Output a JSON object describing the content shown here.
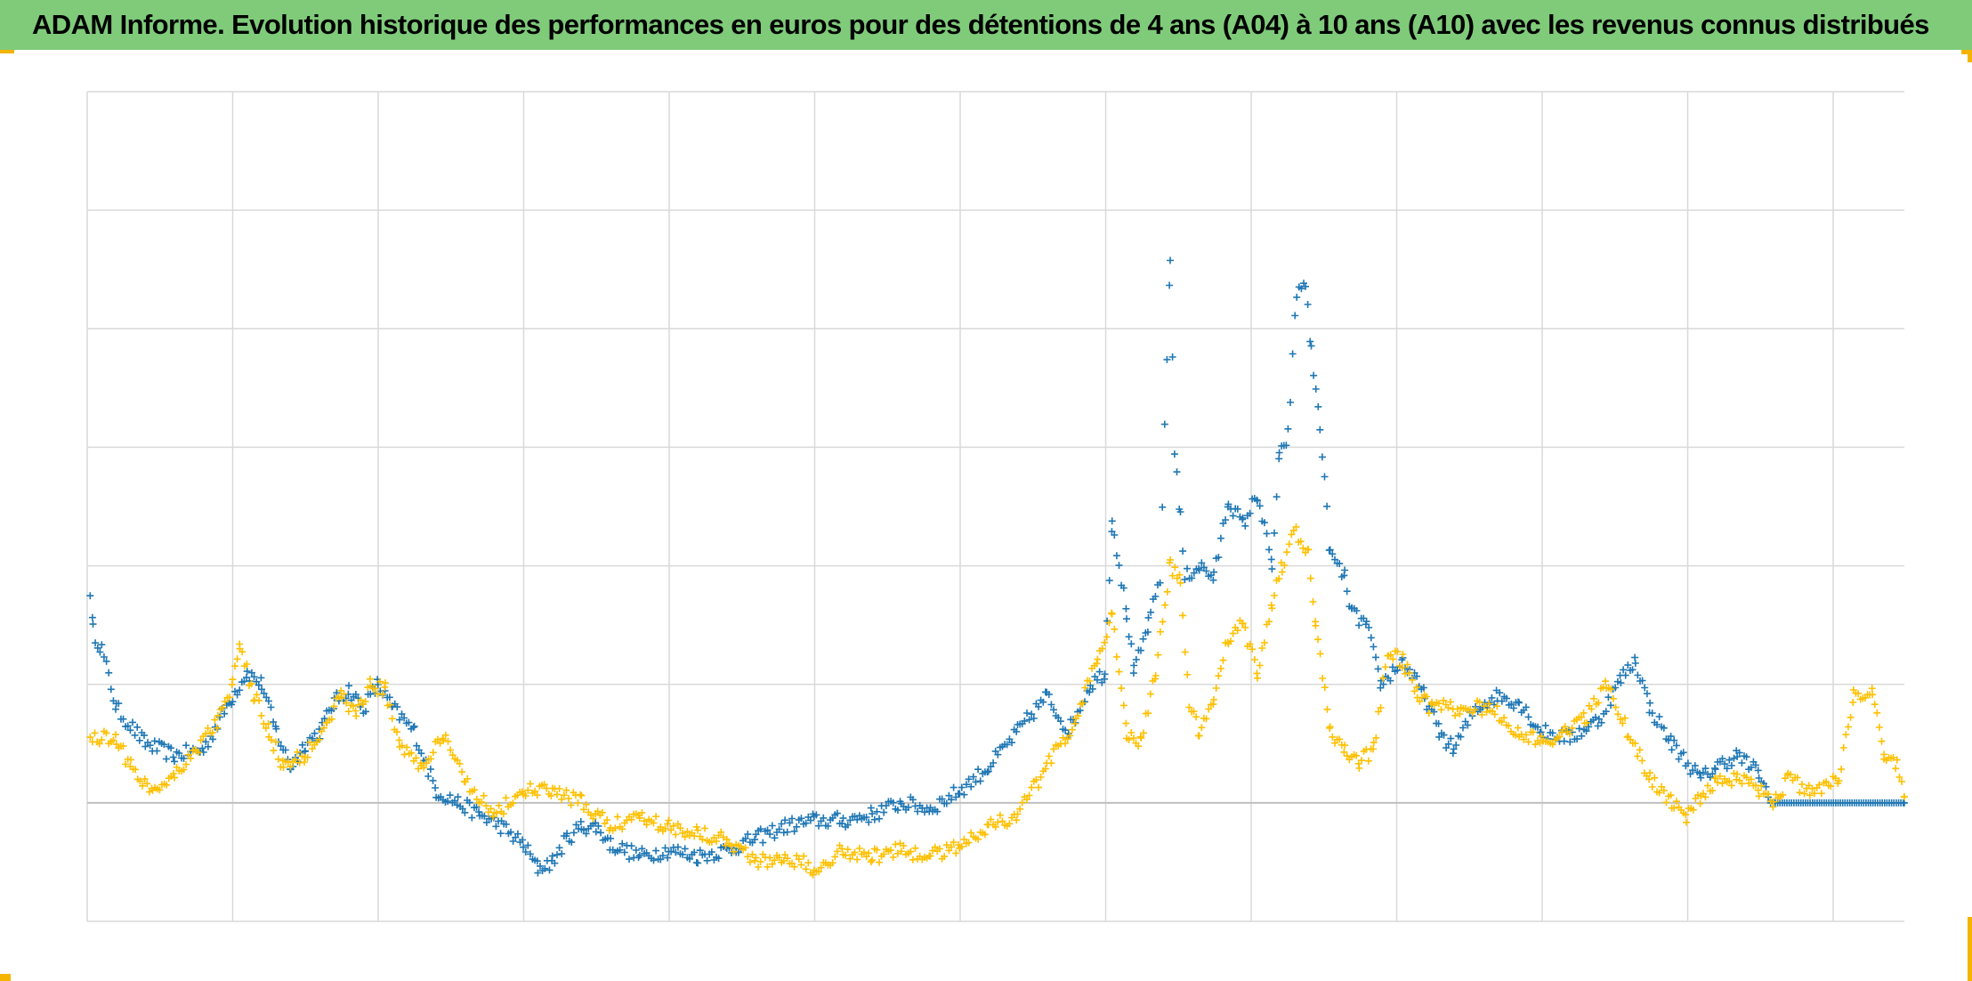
{
  "title": "ADAM Informe. Evolution historique des performances en euros pour des détentions de 4 ans (A04) à 10 ans (A10) avec les revenus connus distribués",
  "colors": {
    "header_bg": "#7fcb7a",
    "corner_accent": "#f4b400",
    "grid": "#d9d9d9",
    "axis_zero": "#bfbfbf",
    "series_a04": "#1f77b4",
    "series_a10": "#ffc000"
  },
  "chart_data": {
    "type": "scatter",
    "marker": "plus",
    "x_axis": {
      "range": [
        0,
        1250
      ],
      "gridlines": 13,
      "tick_labels_visible": false
    },
    "y_axis": {
      "range": [
        -1,
        6
      ],
      "gridlines": 7,
      "zero_line": 0,
      "tick_labels_visible": false
    },
    "grid": true,
    "legend": "none",
    "series": [
      {
        "key": "A04",
        "color": "#1f77b4",
        "anchors": [
          [
            2,
            1.8
          ],
          [
            4,
            1.45
          ],
          [
            10,
            1.3
          ],
          [
            20,
            0.8
          ],
          [
            40,
            0.5
          ],
          [
            60,
            0.4
          ],
          [
            80,
            0.45
          ],
          [
            100,
            0.9
          ],
          [
            110,
            1.1
          ],
          [
            120,
            1.0
          ],
          [
            130,
            0.6
          ],
          [
            140,
            0.3
          ],
          [
            150,
            0.5
          ],
          [
            160,
            0.6
          ],
          [
            170,
            0.85
          ],
          [
            180,
            0.95
          ],
          [
            190,
            0.8
          ],
          [
            200,
            1.0
          ],
          [
            210,
            0.8
          ],
          [
            225,
            0.6
          ],
          [
            240,
            0.1
          ],
          [
            255,
            0.0
          ],
          [
            270,
            -0.1
          ],
          [
            285,
            -0.2
          ],
          [
            300,
            -0.35
          ],
          [
            310,
            -0.55
          ],
          [
            320,
            -0.5
          ],
          [
            330,
            -0.3
          ],
          [
            340,
            -0.2
          ],
          [
            350,
            -0.2
          ],
          [
            360,
            -0.35
          ],
          [
            380,
            -0.45
          ],
          [
            400,
            -0.4
          ],
          [
            420,
            -0.45
          ],
          [
            440,
            -0.4
          ],
          [
            460,
            -0.3
          ],
          [
            480,
            -0.2
          ],
          [
            500,
            -0.15
          ],
          [
            520,
            -0.15
          ],
          [
            540,
            -0.1
          ],
          [
            560,
            0.0
          ],
          [
            580,
            -0.05
          ],
          [
            600,
            0.1
          ],
          [
            620,
            0.3
          ],
          [
            640,
            0.6
          ],
          [
            660,
            0.9
          ],
          [
            675,
            0.6
          ],
          [
            690,
            1.0
          ],
          [
            700,
            1.1
          ],
          [
            705,
            2.4
          ],
          [
            715,
            1.6
          ],
          [
            720,
            1.1
          ],
          [
            730,
            1.5
          ],
          [
            738,
            1.9
          ],
          [
            745,
            4.6
          ],
          [
            748,
            3.0
          ],
          [
            752,
            2.4
          ],
          [
            755,
            1.9
          ],
          [
            765,
            2.0
          ],
          [
            775,
            1.9
          ],
          [
            785,
            2.55
          ],
          [
            795,
            2.35
          ],
          [
            805,
            2.6
          ],
          [
            815,
            2.0
          ],
          [
            820,
            2.9
          ],
          [
            826,
            3.1
          ],
          [
            832,
            4.3
          ],
          [
            838,
            4.4
          ],
          [
            842,
            3.8
          ],
          [
            848,
            3.2
          ],
          [
            855,
            2.1
          ],
          [
            865,
            1.9
          ],
          [
            870,
            1.6
          ],
          [
            880,
            1.5
          ],
          [
            890,
            1.0
          ],
          [
            905,
            1.2
          ],
          [
            920,
            0.9
          ],
          [
            930,
            0.6
          ],
          [
            940,
            0.45
          ],
          [
            955,
            0.8
          ],
          [
            970,
            0.9
          ],
          [
            985,
            0.85
          ],
          [
            1000,
            0.6
          ],
          [
            1020,
            0.55
          ],
          [
            1040,
            0.7
          ],
          [
            1055,
            1.05
          ],
          [
            1065,
            1.2
          ],
          [
            1075,
            0.8
          ],
          [
            1090,
            0.5
          ],
          [
            1110,
            0.2
          ],
          [
            1120,
            0.3
          ],
          [
            1135,
            0.4
          ],
          [
            1150,
            0.25
          ],
          [
            1158,
            0.0
          ],
          [
            1250,
            0.0
          ]
        ]
      },
      {
        "key": "A10",
        "color": "#ffc000",
        "anchors": [
          [
            2,
            0.55
          ],
          [
            20,
            0.55
          ],
          [
            30,
            0.3
          ],
          [
            45,
            0.1
          ],
          [
            60,
            0.25
          ],
          [
            75,
            0.45
          ],
          [
            90,
            0.7
          ],
          [
            100,
            1.0
          ],
          [
            105,
            1.3
          ],
          [
            115,
            0.9
          ],
          [
            125,
            0.6
          ],
          [
            135,
            0.3
          ],
          [
            150,
            0.4
          ],
          [
            165,
            0.7
          ],
          [
            175,
            0.9
          ],
          [
            185,
            0.75
          ],
          [
            195,
            1.0
          ],
          [
            205,
            0.95
          ],
          [
            215,
            0.5
          ],
          [
            230,
            0.3
          ],
          [
            245,
            0.55
          ],
          [
            260,
            0.2
          ],
          [
            280,
            -0.1
          ],
          [
            300,
            0.1
          ],
          [
            320,
            0.1
          ],
          [
            340,
            0.0
          ],
          [
            360,
            -0.2
          ],
          [
            380,
            -0.1
          ],
          [
            400,
            -0.2
          ],
          [
            420,
            -0.25
          ],
          [
            440,
            -0.3
          ],
          [
            460,
            -0.5
          ],
          [
            480,
            -0.45
          ],
          [
            500,
            -0.55
          ],
          [
            520,
            -0.4
          ],
          [
            540,
            -0.45
          ],
          [
            560,
            -0.4
          ],
          [
            580,
            -0.45
          ],
          [
            600,
            -0.35
          ],
          [
            620,
            -0.2
          ],
          [
            640,
            -0.1
          ],
          [
            660,
            0.3
          ],
          [
            680,
            0.7
          ],
          [
            695,
            1.2
          ],
          [
            705,
            1.6
          ],
          [
            715,
            0.6
          ],
          [
            725,
            0.5
          ],
          [
            735,
            1.1
          ],
          [
            745,
            2.0
          ],
          [
            752,
            1.9
          ],
          [
            758,
            0.8
          ],
          [
            765,
            0.6
          ],
          [
            775,
            0.9
          ],
          [
            785,
            1.4
          ],
          [
            795,
            1.5
          ],
          [
            805,
            1.1
          ],
          [
            815,
            1.7
          ],
          [
            822,
            2.0
          ],
          [
            830,
            2.3
          ],
          [
            840,
            2.1
          ],
          [
            845,
            1.5
          ],
          [
            855,
            0.6
          ],
          [
            865,
            0.45
          ],
          [
            875,
            0.35
          ],
          [
            885,
            0.45
          ],
          [
            895,
            1.3
          ],
          [
            905,
            1.2
          ],
          [
            915,
            0.9
          ],
          [
            925,
            0.8
          ],
          [
            945,
            0.8
          ],
          [
            965,
            0.8
          ],
          [
            985,
            0.6
          ],
          [
            1000,
            0.5
          ],
          [
            1015,
            0.6
          ],
          [
            1030,
            0.7
          ],
          [
            1045,
            1.0
          ],
          [
            1060,
            0.6
          ],
          [
            1075,
            0.2
          ],
          [
            1090,
            0.0
          ],
          [
            1100,
            -0.1
          ],
          [
            1110,
            0.05
          ],
          [
            1120,
            0.15
          ],
          [
            1135,
            0.2
          ],
          [
            1150,
            0.1
          ],
          [
            1160,
            0.0
          ],
          [
            1170,
            0.2
          ],
          [
            1185,
            0.1
          ],
          [
            1205,
            0.2
          ],
          [
            1215,
            0.9
          ],
          [
            1228,
            0.95
          ],
          [
            1236,
            0.4
          ],
          [
            1245,
            0.3
          ],
          [
            1250,
            0.05
          ]
        ]
      }
    ]
  }
}
